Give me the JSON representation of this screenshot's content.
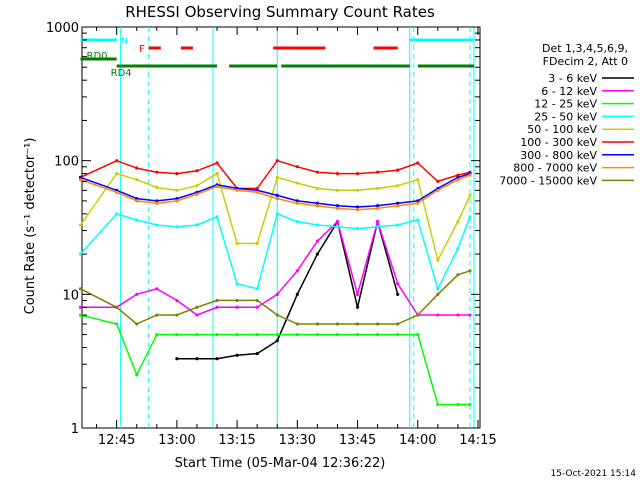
{
  "chart_data": {
    "type": "line",
    "title": "RHESSI Observing Summary Count Rates",
    "xlabel": "Start Time (05-Mar-04 12:36:22)",
    "ylabel": "Count Rate (s⁻¹ detector⁻¹)",
    "y_scale": "log",
    "xlim": [
      "12:36:22",
      "14:15:30"
    ],
    "ylim": [
      1,
      1000
    ],
    "x_ticks": [
      "12:45",
      "13:00",
      "13:15",
      "13:30",
      "13:45",
      "14:00",
      "14:15"
    ],
    "y_ticks": [
      1,
      10,
      100,
      1000
    ],
    "y_tick_labels": [
      "1",
      "10",
      "100",
      "1000"
    ],
    "legend_header": [
      "Det 1,3,4,5,6,9,",
      "FDecim 2, Att 0"
    ],
    "legend_position": "right, outside plot",
    "series": [
      {
        "name": "3 - 6 keV",
        "color": "#000000",
        "x": [
          "12:36",
          "12:45",
          "12:50",
          "12:55",
          "13:00",
          "13:05",
          "13:10",
          "13:15",
          "13:20",
          "13:25",
          "13:30",
          "13:35",
          "13:40",
          "13:45",
          "13:50",
          "13:55",
          "14:00",
          "14:05",
          "14:10",
          "14:13"
        ],
        "values": [
          null,
          null,
          null,
          null,
          3.3,
          3.3,
          3.3,
          3.5,
          3.6,
          4.5,
          10,
          20,
          35,
          8,
          35,
          10,
          null,
          null,
          null,
          null
        ]
      },
      {
        "name": "6 - 12 keV",
        "color": "#ff00ff",
        "x": [
          "12:36",
          "12:45",
          "12:50",
          "12:55",
          "13:00",
          "13:05",
          "13:10",
          "13:15",
          "13:20",
          "13:25",
          "13:30",
          "13:35",
          "13:40",
          "13:45",
          "13:50",
          "13:55",
          "14:00",
          "14:05",
          "14:10",
          "14:13"
        ],
        "values": [
          8,
          8,
          10,
          11,
          9,
          7,
          8,
          8,
          8,
          10,
          15,
          25,
          35,
          10,
          35,
          12,
          7,
          7,
          7,
          7
        ]
      },
      {
        "name": "12 - 25 keV",
        "color": "#00ff00",
        "x": [
          "12:36",
          "12:45",
          "12:50",
          "12:55",
          "13:00",
          "13:05",
          "13:10",
          "13:15",
          "13:20",
          "13:25",
          "13:30",
          "13:35",
          "13:40",
          "13:45",
          "13:50",
          "13:55",
          "14:00",
          "14:05",
          "14:10",
          "14:13"
        ],
        "values": [
          7,
          6,
          2.5,
          5,
          5,
          5,
          5,
          5,
          5,
          5,
          5,
          5,
          5,
          5,
          5,
          5,
          5,
          1.5,
          1.5,
          1.5
        ]
      },
      {
        "name": "25 - 50 keV",
        "color": "#00ffff",
        "x": [
          "12:36",
          "12:45",
          "12:50",
          "12:55",
          "13:00",
          "13:05",
          "13:10",
          "13:15",
          "13:20",
          "13:25",
          "13:30",
          "13:35",
          "13:40",
          "13:45",
          "13:50",
          "13:55",
          "14:00",
          "14:05",
          "14:10",
          "14:13"
        ],
        "values": [
          20,
          40,
          36,
          33,
          32,
          33,
          38,
          12,
          11,
          40,
          35,
          33,
          32,
          31,
          32,
          33,
          36,
          11,
          22,
          38
        ]
      },
      {
        "name": "50 - 100 keV",
        "color": "#cccc00",
        "x": [
          "12:36",
          "12:45",
          "12:50",
          "12:55",
          "13:00",
          "13:05",
          "13:10",
          "13:15",
          "13:20",
          "13:25",
          "13:30",
          "13:35",
          "13:40",
          "13:45",
          "13:50",
          "13:55",
          "14:00",
          "14:05",
          "14:10",
          "14:13"
        ],
        "values": [
          33,
          80,
          72,
          63,
          60,
          65,
          80,
          24,
          24,
          75,
          68,
          62,
          60,
          60,
          62,
          65,
          72,
          18,
          35,
          55
        ]
      },
      {
        "name": "100 - 300 keV",
        "color": "#ff0000",
        "x": [
          "12:36",
          "12:45",
          "12:50",
          "12:55",
          "13:00",
          "13:05",
          "13:10",
          "13:15",
          "13:20",
          "13:25",
          "13:30",
          "13:35",
          "13:40",
          "13:45",
          "13:50",
          "13:55",
          "14:00",
          "14:05",
          "14:10",
          "14:13"
        ],
        "values": [
          75,
          100,
          88,
          82,
          80,
          84,
          96,
          62,
          62,
          100,
          90,
          82,
          80,
          80,
          82,
          85,
          96,
          70,
          78,
          82
        ]
      },
      {
        "name": "300 - 800 keV",
        "color": "#0000ff",
        "x": [
          "12:36",
          "12:45",
          "12:50",
          "12:55",
          "13:00",
          "13:05",
          "13:10",
          "13:15",
          "13:20",
          "13:25",
          "13:30",
          "13:35",
          "13:40",
          "13:45",
          "13:50",
          "13:55",
          "14:00",
          "14:05",
          "14:10",
          "14:13"
        ],
        "values": [
          75,
          60,
          52,
          50,
          52,
          58,
          66,
          62,
          60,
          55,
          50,
          48,
          46,
          45,
          46,
          48,
          50,
          62,
          75,
          80
        ]
      },
      {
        "name": "800 - 7000 keV",
        "color": "#ff8800",
        "x": [
          "12:36",
          "12:45",
          "12:50",
          "12:55",
          "13:00",
          "13:05",
          "13:10",
          "13:15",
          "13:20",
          "13:25",
          "13:30",
          "13:35",
          "13:40",
          "13:45",
          "13:50",
          "13:55",
          "14:00",
          "14:05",
          "14:10",
          "14:13"
        ],
        "values": [
          72,
          58,
          50,
          48,
          50,
          56,
          64,
          60,
          58,
          52,
          48,
          46,
          44,
          43,
          44,
          46,
          48,
          60,
          72,
          78
        ]
      },
      {
        "name": "7000 - 15000 keV",
        "color": "#808000",
        "x": [
          "12:36",
          "12:45",
          "12:50",
          "12:55",
          "13:00",
          "13:05",
          "13:10",
          "13:15",
          "13:20",
          "13:25",
          "13:30",
          "13:35",
          "13:40",
          "13:45",
          "13:50",
          "13:55",
          "14:00",
          "14:05",
          "14:10",
          "14:13"
        ],
        "values": [
          11,
          8,
          6,
          7,
          7,
          8,
          9,
          9,
          9,
          7,
          6,
          6,
          6,
          6,
          6,
          6,
          7,
          10,
          14,
          15
        ]
      }
    ],
    "flag_rows": [
      {
        "label": "N",
        "color": "#00ffff",
        "segments": [
          [
            "12:36",
            "12:45"
          ],
          [
            "13:58",
            "14:14"
          ]
        ]
      },
      {
        "label": "F",
        "color": "#ff0000",
        "segments": [
          [
            "12:53",
            "12:56"
          ],
          [
            "13:01",
            "13:04"
          ],
          [
            "13:24",
            "13:37"
          ],
          [
            "13:49",
            "13:55"
          ]
        ]
      },
      {
        "label": "RD0",
        "color": "#008000",
        "segments": [
          [
            "12:36",
            "12:45"
          ]
        ]
      },
      {
        "label": "RD4",
        "color": "#008000",
        "segments": [
          [
            "12:45",
            "13:10"
          ],
          [
            "13:13",
            "13:25"
          ],
          [
            "13:26",
            "13:58"
          ],
          [
            "14:00",
            "14:14"
          ]
        ]
      }
    ],
    "vertical_markers": {
      "solid": [
        "12:46",
        "13:09",
        "13:25",
        "13:58",
        "14:14"
      ],
      "dashed": [
        "12:53",
        "13:59",
        "14:13"
      ],
      "color": "#00ffff"
    }
  },
  "footer": {
    "timestamp": "15-Oct-2021 15:14"
  }
}
